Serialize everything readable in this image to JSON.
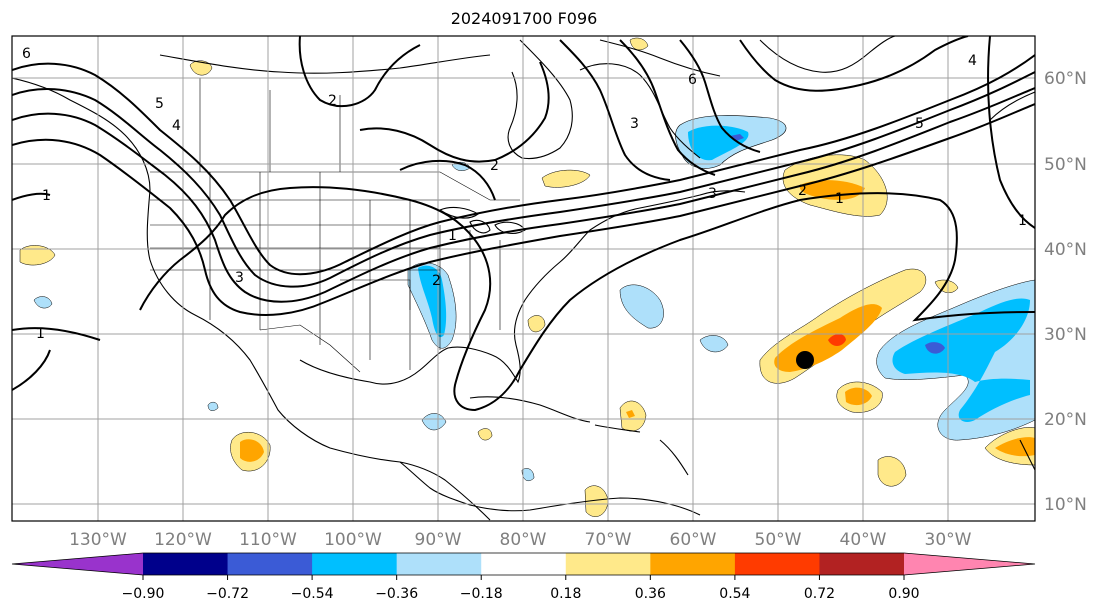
{
  "title": "2024091700 F096",
  "map": {
    "projection": "PlateCarree",
    "lon_labels": [
      "130°W",
      "120°W",
      "110°W",
      "100°W",
      "90°W",
      "80°W",
      "70°W",
      "60°W",
      "50°W",
      "40°W",
      "30°W"
    ],
    "lat_labels": [
      "60°N",
      "50°N",
      "40°N",
      "30°N",
      "20°N",
      "10°N"
    ],
    "lon_range": [
      -140,
      -20
    ],
    "lat_range": [
      7,
      65
    ],
    "gridlines": true,
    "coastlines": true,
    "state_borders": true,
    "marker": {
      "label": "storm center dot",
      "lon": -47,
      "lat": 27,
      "color": "#000000"
    }
  },
  "contour_labels": [
    "6",
    "5",
    "4",
    "3",
    "2",
    "1",
    "1",
    "2",
    "3",
    "4",
    "5",
    "6",
    "1",
    "2",
    "1",
    "1",
    "3",
    "2"
  ],
  "colorbar": {
    "ticks": [
      "−0.90",
      "−0.72",
      "−0.54",
      "−0.36",
      "−0.18",
      "0.18",
      "0.36",
      "0.54",
      "0.72",
      "0.90"
    ],
    "colors": [
      "#9933cc",
      "#00008b",
      "#3b5bd6",
      "#00bfff",
      "#aee0fa",
      "#ffffff",
      "#ffe98a",
      "#ffa500",
      "#ff3b00",
      "#b22222",
      "#ff85b0"
    ],
    "extend": "both"
  }
}
